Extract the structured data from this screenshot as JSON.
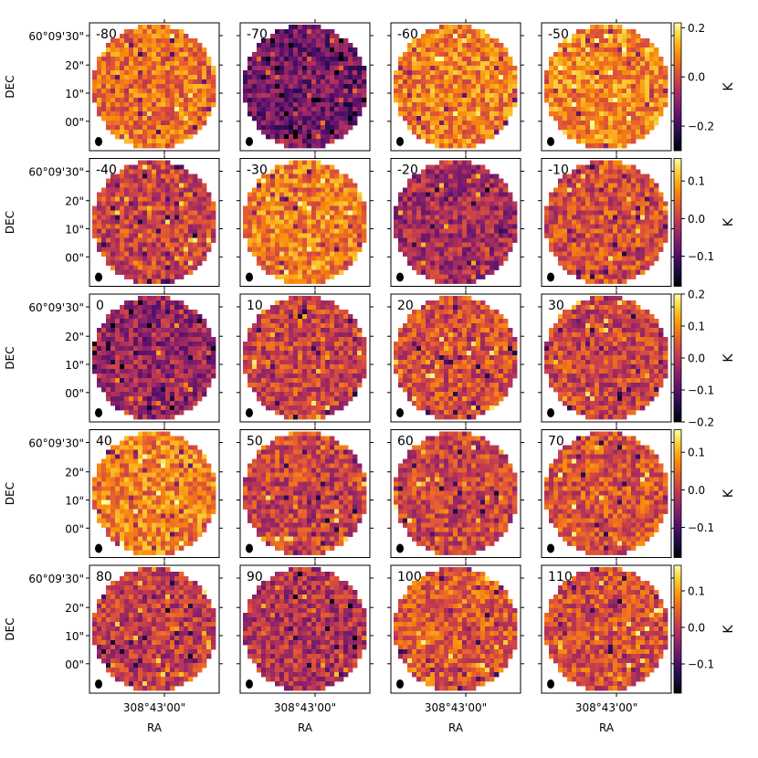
{
  "chart_data": {
    "type": "heatmap",
    "description_title": "",
    "xlabel": "RA",
    "ylabel": "DEC",
    "x_tick_label": "308°43'00\"",
    "y_tick_labels": [
      "60°09'30\"",
      "20\"",
      "10\"",
      "00\""
    ],
    "colorbar_label": "K",
    "colormap": "inferno",
    "rows": [
      {
        "panels": [
          "-80",
          "-70",
          "-60",
          "-50"
        ],
        "colorbar": {
          "min": -0.3,
          "max": 0.22,
          "ticks": [
            -0.2,
            0.0,
            0.2
          ],
          "tick_labels": [
            "−0.2",
            "0.0",
            "0.2"
          ]
        },
        "level": [
          0.68,
          0.32,
          0.72,
          0.74
        ]
      },
      {
        "panels": [
          "-40",
          "-30",
          "-20",
          "-10"
        ],
        "colorbar": {
          "min": -0.18,
          "max": 0.16,
          "ticks": [
            -0.1,
            0.0,
            0.1
          ],
          "tick_labels": [
            "−0.1",
            "0.0",
            "0.1"
          ]
        },
        "level": [
          0.55,
          0.72,
          0.45,
          0.58
        ]
      },
      {
        "panels": [
          "0",
          "10",
          "20",
          "30"
        ],
        "colorbar": {
          "min": -0.2,
          "max": 0.2,
          "ticks": [
            -0.2,
            -0.1,
            0.0,
            0.1,
            0.2
          ],
          "tick_labels": [
            "−0.2",
            "−0.1",
            "0.0",
            "0.1",
            "0.2"
          ]
        },
        "level": [
          0.42,
          0.55,
          0.58,
          0.55
        ]
      },
      {
        "panels": [
          "40",
          "50",
          "60",
          "70"
        ],
        "colorbar": {
          "min": -0.18,
          "max": 0.16,
          "ticks": [
            -0.1,
            0.0,
            0.1
          ],
          "tick_labels": [
            "−0.1",
            "0.0",
            "0.1"
          ]
        },
        "level": [
          0.72,
          0.55,
          0.55,
          0.6
        ]
      },
      {
        "panels": [
          "80",
          "90",
          "100",
          "110"
        ],
        "colorbar": {
          "min": -0.18,
          "max": 0.17,
          "ticks": [
            -0.1,
            0.0,
            0.1
          ],
          "tick_labels": [
            "−0.1",
            "0.0",
            "0.1"
          ]
        },
        "level": [
          0.52,
          0.48,
          0.62,
          0.58
        ]
      }
    ]
  }
}
